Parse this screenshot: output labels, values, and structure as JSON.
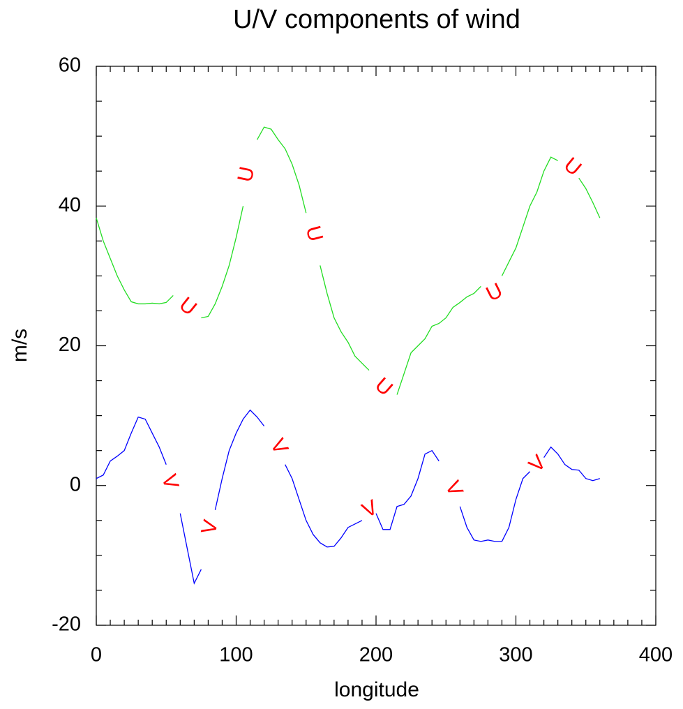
{
  "chart_data": {
    "type": "line",
    "title": "U/V components of wind",
    "xlabel": "longitude",
    "ylabel": "m/s",
    "xlim": [
      0,
      400
    ],
    "ylim": [
      -20,
      60
    ],
    "xticks": [
      0,
      100,
      200,
      300,
      400
    ],
    "yticks": [
      -20,
      0,
      20,
      40,
      60
    ],
    "xminorticks": [
      10,
      20,
      30,
      40,
      50,
      60,
      70,
      80,
      90,
      110,
      120,
      130,
      140,
      150,
      160,
      170,
      180,
      190,
      210,
      220,
      230,
      240,
      250,
      260,
      270,
      280,
      290,
      310,
      320,
      330,
      340,
      350,
      360,
      370,
      380,
      390
    ],
    "yminorticks": [
      -15,
      -10,
      -5,
      5,
      10,
      15,
      25,
      30,
      35,
      45,
      50,
      55
    ],
    "label_color": "#ff0000",
    "x": [
      0,
      5,
      10,
      15,
      20,
      25,
      30,
      35,
      40,
      45,
      50,
      55,
      60,
      65,
      70,
      75,
      80,
      85,
      90,
      95,
      100,
      105,
      110,
      115,
      120,
      125,
      130,
      135,
      140,
      145,
      150,
      155,
      160,
      165,
      170,
      175,
      180,
      185,
      190,
      195,
      200,
      205,
      210,
      215,
      220,
      225,
      230,
      235,
      240,
      245,
      250,
      255,
      260,
      265,
      270,
      275,
      280,
      285,
      290,
      295,
      300,
      305,
      310,
      315,
      320,
      325,
      330,
      335,
      340,
      345,
      350,
      355,
      360
    ],
    "series": [
      {
        "name": "U",
        "color": "#22dd22",
        "values": [
          38.3,
          35,
          32.5,
          30,
          28,
          26.3,
          26,
          26,
          26.1,
          26,
          26.2,
          27.2,
          null,
          null,
          null,
          24,
          24.2,
          26,
          28.5,
          31.5,
          35.5,
          40,
          null,
          49.5,
          51.3,
          51,
          49.5,
          48.2,
          46,
          43,
          39,
          null,
          31.5,
          27.5,
          24,
          22,
          20.5,
          18.5,
          17.5,
          16.5,
          null,
          null,
          null,
          13,
          16,
          19,
          20,
          21,
          22.8,
          23.2,
          24,
          25.5,
          26.2,
          27,
          27.5,
          28.5,
          null,
          null,
          30,
          32,
          34,
          37,
          40,
          42,
          45,
          47,
          46.5,
          null,
          null,
          44,
          42.5,
          40.5,
          38.3
        ],
        "labels": [
          {
            "x": 65,
            "y": 25.5
          },
          {
            "x": 108,
            "y": 44.5
          },
          {
            "x": 155,
            "y": 36
          },
          {
            "x": 205,
            "y": 14
          },
          {
            "x": 285,
            "y": 27.5
          },
          {
            "x": 340,
            "y": 45.5
          }
        ]
      },
      {
        "name": "V",
        "color": "#0000ff",
        "values": [
          1,
          1.5,
          3.5,
          4.2,
          5,
          7.5,
          9.8,
          9.5,
          7.5,
          5.5,
          3,
          null,
          -4,
          -9,
          -14,
          -12,
          null,
          -3.5,
          1,
          5,
          7.5,
          9.5,
          10.8,
          9.8,
          8.5,
          null,
          null,
          3,
          1,
          -2,
          -5,
          -7,
          -8.2,
          -8.8,
          -8.7,
          -7.5,
          -6,
          -5.5,
          -5,
          null,
          -4,
          -6.3,
          -6.3,
          -3,
          -2.7,
          -1.5,
          1,
          4.5,
          5,
          3.5,
          null,
          null,
          -3,
          -6,
          -7.8,
          -8,
          -7.8,
          -8,
          -8,
          -6,
          -2,
          1,
          2,
          null,
          4,
          5.5,
          4.5,
          3,
          2.3,
          2.2,
          1,
          0.7,
          1
        ],
        "labels": [
          {
            "x": 52,
            "y": 0.5
          },
          {
            "x": 82,
            "y": -6
          },
          {
            "x": 130,
            "y": 5.5
          },
          {
            "x": 196,
            "y": -3.5
          },
          {
            "x": 255,
            "y": -0.5
          },
          {
            "x": 316,
            "y": 3
          }
        ]
      }
    ]
  }
}
